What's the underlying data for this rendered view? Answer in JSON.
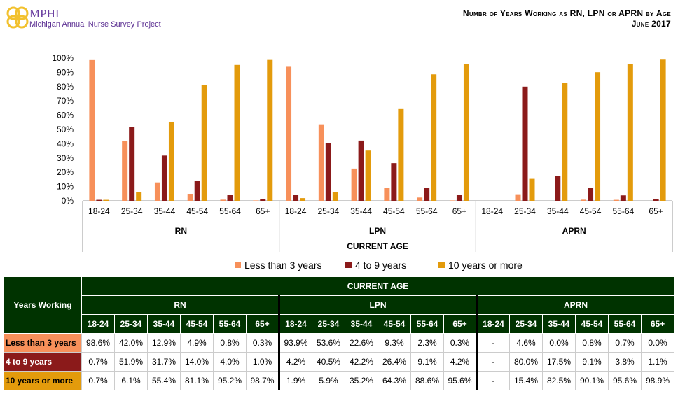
{
  "header": {
    "brand": "MPHI",
    "subtitle": "Michigan Annual Nurse Survey Project",
    "title_line1": "Numbr of Years Working as RN, LPN or APRN by Age",
    "title_line2": "June 2017"
  },
  "colors": {
    "less_than_3": "#F7905A",
    "4_to_9": "#8B1A1A",
    "10_or_more": "#E39B0C",
    "table_header": "#003300",
    "logo": "#F2C12E"
  },
  "chart_data": {
    "type": "bar",
    "xlabel": "CURRENT AGE",
    "groups": [
      "RN",
      "LPN",
      "APRN"
    ],
    "categories": [
      "18-24",
      "25-34",
      "35-44",
      "45-54",
      "55-64",
      "65+"
    ],
    "ylim": [
      0,
      100
    ],
    "yticks": [
      "0%",
      "10%",
      "20%",
      "30%",
      "40%",
      "50%",
      "60%",
      "70%",
      "80%",
      "90%",
      "100%"
    ],
    "legend_position": "bottom",
    "series": [
      {
        "name": "Less than 3 years",
        "values": {
          "RN": [
            98.6,
            42.0,
            12.9,
            4.9,
            0.8,
            0.3
          ],
          "LPN": [
            93.9,
            53.6,
            22.6,
            9.3,
            2.3,
            0.3
          ],
          "APRN": [
            null,
            4.6,
            0.0,
            0.8,
            0.7,
            0.0
          ]
        }
      },
      {
        "name": "4 to 9 years",
        "values": {
          "RN": [
            0.7,
            51.9,
            31.7,
            14.0,
            4.0,
            1.0
          ],
          "LPN": [
            4.2,
            40.5,
            42.2,
            26.4,
            9.1,
            4.2
          ],
          "APRN": [
            null,
            80.0,
            17.5,
            9.1,
            3.8,
            1.1
          ]
        }
      },
      {
        "name": "10 years or more",
        "values": {
          "RN": [
            0.7,
            6.1,
            55.4,
            81.1,
            95.2,
            98.7
          ],
          "LPN": [
            1.9,
            5.9,
            35.2,
            64.3,
            88.6,
            95.6
          ],
          "APRN": [
            null,
            15.4,
            82.5,
            90.1,
            95.6,
            98.9
          ]
        }
      }
    ]
  },
  "table": {
    "row_header": "Years Working",
    "top_header": "CURRENT AGE",
    "missing": "-"
  }
}
